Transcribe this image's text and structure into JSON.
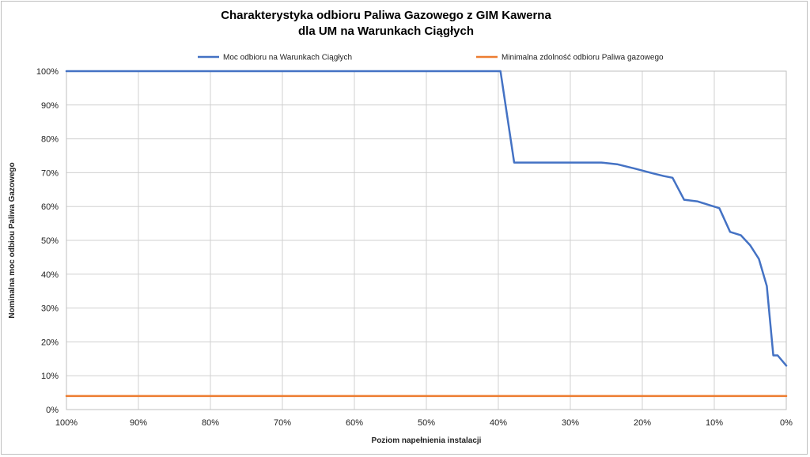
{
  "chart_data": {
    "type": "line",
    "title_line1": "Charakterystyka odbioru Paliwa Gazowego z GIM Kawerna",
    "title_line2": "dla UM na Warunkach Ciągłych",
    "xlabel": "Poziom napełnienia instalacji",
    "ylabel": "Nominalna moc odbiou Paliwa Gazowego",
    "x_reversed": true,
    "xlim": [
      100,
      0
    ],
    "ylim": [
      0,
      100
    ],
    "grid": true,
    "legend_position": "top",
    "x_ticks": [
      100,
      90,
      80,
      70,
      60,
      50,
      40,
      30,
      20,
      10,
      0
    ],
    "x_tick_labels": [
      "100%",
      "90%",
      "80%",
      "70%",
      "60%",
      "50%",
      "40%",
      "30%",
      "20%",
      "10%",
      "0%"
    ],
    "y_ticks": [
      0,
      10,
      20,
      30,
      40,
      50,
      60,
      70,
      80,
      90,
      100
    ],
    "y_tick_labels": [
      "0%",
      "10%",
      "20%",
      "30%",
      "40%",
      "50%",
      "60%",
      "70%",
      "80%",
      "90%",
      "100%"
    ],
    "series": [
      {
        "name": "Moc odbioru na Warunkach Ciągłych",
        "color": "#4472c4",
        "x": [
          100,
          39.7,
          37.8,
          34,
          30,
          25.7,
          23.5,
          21,
          18.5,
          17,
          15.8,
          14.2,
          12.3,
          10.8,
          9.3,
          7.8,
          6.3,
          5,
          3.8,
          2.7,
          2.2,
          1.8,
          1.2,
          0
        ],
        "y": [
          100,
          100,
          73,
          73,
          73,
          73,
          72.5,
          71.2,
          69.8,
          69,
          68.5,
          62,
          61.5,
          60.5,
          59.5,
          52.5,
          51.5,
          48.5,
          44.5,
          36.5,
          25,
          16,
          16,
          13
        ]
      },
      {
        "name": "Minimalna zdolność odbioru Paliwa gazowego",
        "color": "#ed7d31",
        "x": [
          100,
          0
        ],
        "y": [
          4,
          4
        ]
      }
    ]
  }
}
